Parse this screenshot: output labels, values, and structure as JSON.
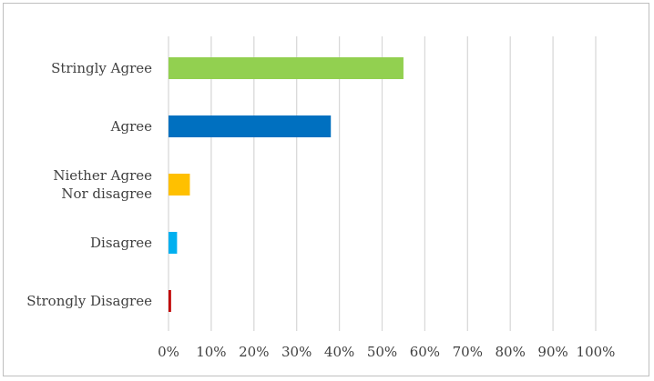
{
  "chart_data": {
    "type": "bar",
    "orientation": "horizontal",
    "categories": [
      "Stringly Agree",
      "Agree",
      "Niether Agree Nor disagree",
      "Disagree",
      "Strongly Disagree"
    ],
    "category_label_lines": [
      [
        "Stringly Agree"
      ],
      [
        "Agree"
      ],
      [
        "Niether Agree",
        "Nor disagree"
      ],
      [
        "Disagree"
      ],
      [
        "Strongly Disagree"
      ]
    ],
    "values": [
      55,
      38,
      5,
      2,
      0.6
    ],
    "colors": [
      "#92d050",
      "#0070c0",
      "#ffc000",
      "#00b0f0",
      "#c00000"
    ],
    "xlim": [
      0,
      100
    ],
    "x_ticks": [
      0,
      10,
      20,
      30,
      40,
      50,
      60,
      70,
      80,
      90,
      100
    ],
    "x_tick_labels": [
      "0%",
      "10%",
      "20%",
      "30%",
      "40%",
      "50%",
      "60%",
      "70%",
      "80%",
      "90%",
      "100%"
    ],
    "grid": "vertical",
    "grid_color": "#d9d9d9",
    "legend": "none",
    "title": "",
    "xlabel": "",
    "ylabel": ""
  }
}
